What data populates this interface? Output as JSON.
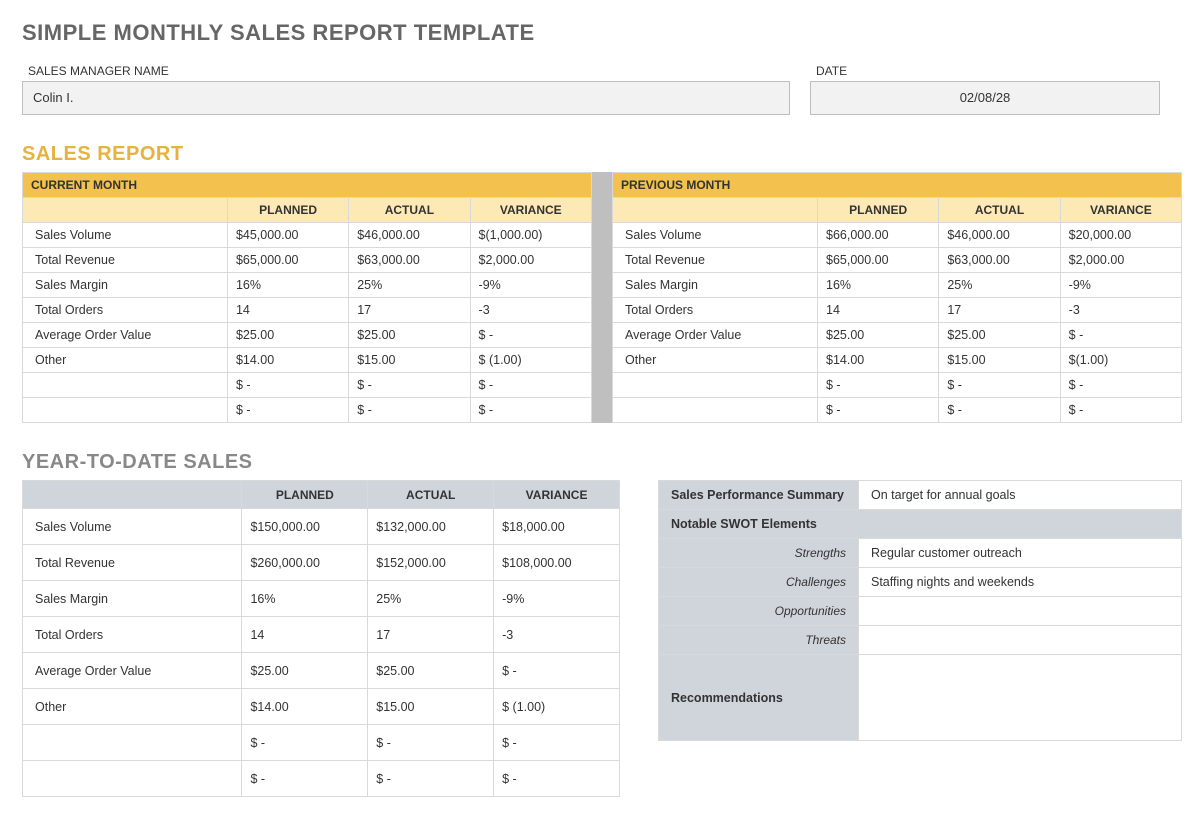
{
  "title": "SIMPLE MONTHLY SALES REPORT TEMPLATE",
  "header": {
    "manager_label": "SALES MANAGER NAME",
    "manager_value": "Colin I.",
    "date_label": "DATE",
    "date_value": "02/08/28"
  },
  "sales_report": {
    "title": "SALES REPORT",
    "columns": [
      "PLANNED",
      "ACTUAL",
      "VARIANCE"
    ],
    "current": {
      "title": "CURRENT MONTH",
      "rows": [
        {
          "metric": "Sales Volume",
          "planned": "$45,000.00",
          "actual": "$46,000.00",
          "variance": "$(1,000.00)"
        },
        {
          "metric": "Total Revenue",
          "planned": "$65,000.00",
          "actual": "$63,000.00",
          "variance": "$2,000.00"
        },
        {
          "metric": "Sales Margin",
          "planned": "16%",
          "actual": "25%",
          "variance": "-9%"
        },
        {
          "metric": "Total Orders",
          "planned": "14",
          "actual": "17",
          "variance": "-3"
        },
        {
          "metric": "Average Order Value",
          "planned": " $25.00",
          "actual": " $25.00",
          "variance": " $             -"
        },
        {
          "metric": "Other",
          "planned": " $14.00",
          "actual": " $15.00",
          "variance": " $ (1.00)"
        },
        {
          "metric": "",
          "planned": " $            -",
          "actual": " $            -",
          "variance": " $             -"
        },
        {
          "metric": "",
          "planned": " $            -",
          "actual": " $            -",
          "variance": " $             -"
        }
      ]
    },
    "previous": {
      "title": "PREVIOUS MONTH",
      "rows": [
        {
          "metric": "Sales Volume",
          "planned": "$66,000.00",
          "actual": "$46,000.00",
          "variance": "$20,000.00"
        },
        {
          "metric": "Total Revenue",
          "planned": "$65,000.00",
          "actual": "$63,000.00",
          "variance": "$2,000.00"
        },
        {
          "metric": "Sales Margin",
          "planned": "16%",
          "actual": "25%",
          "variance": "-9%"
        },
        {
          "metric": "Total Orders",
          "planned": "14",
          "actual": "17",
          "variance": "-3"
        },
        {
          "metric": "Average Order Value",
          "planned": " $25.00",
          "actual": " $25.00",
          "variance": " $             -"
        },
        {
          "metric": "Other",
          "planned": " $14.00",
          "actual": " $15.00",
          "variance": "$(1.00)"
        },
        {
          "metric": "",
          "planned": " $            -",
          "actual": " $            -",
          "variance": " $             -"
        },
        {
          "metric": "",
          "planned": " $            -",
          "actual": " $            -",
          "variance": " $             -"
        }
      ]
    }
  },
  "ytd": {
    "title": "YEAR-TO-DATE SALES",
    "columns": [
      "PLANNED",
      "ACTUAL",
      "VARIANCE"
    ],
    "rows": [
      {
        "metric": "Sales Volume",
        "planned": "$150,000.00",
        "actual": "$132,000.00",
        "variance": "$18,000.00"
      },
      {
        "metric": "Total Revenue",
        "planned": "$260,000.00",
        "actual": "$152,000.00",
        "variance": "$108,000.00"
      },
      {
        "metric": "Sales Margin",
        "planned": "16%",
        "actual": "25%",
        "variance": "-9%"
      },
      {
        "metric": "Total Orders",
        "planned": "14",
        "actual": "17",
        "variance": "-3"
      },
      {
        "metric": "Average Order Value",
        "planned": " $25.00",
        "actual": " $25.00",
        "variance": " $             -"
      },
      {
        "metric": "Other",
        "planned": " $14.00",
        "actual": " $15.00",
        "variance": " $ (1.00)"
      },
      {
        "metric": "",
        "planned": " $            -",
        "actual": " $            -",
        "variance": " $             -"
      },
      {
        "metric": "",
        "planned": " $            -",
        "actual": " $            -",
        "variance": " $             -"
      }
    ]
  },
  "summary": {
    "perf_label": "Sales Performance Summary",
    "perf_value": "On target for annual goals",
    "swot_label": "Notable SWOT Elements",
    "strengths_label": "Strengths",
    "strengths_value": "Regular customer outreach",
    "challenges_label": "Challenges",
    "challenges_value": "Staffing nights and weekends",
    "opportunities_label": "Opportunities",
    "opportunities_value": "",
    "threats_label": "Threats",
    "threats_value": "",
    "rec_label": "Recommendations",
    "rec_value": ""
  },
  "colors": {
    "gold_dark": "#f2c14e",
    "gold_light": "#fde9b6",
    "grey_header": "#d0d4db",
    "grey_fill": "#f2f2f2",
    "grey_gap": "#bfbfbf",
    "border": "#d9d9d9"
  }
}
